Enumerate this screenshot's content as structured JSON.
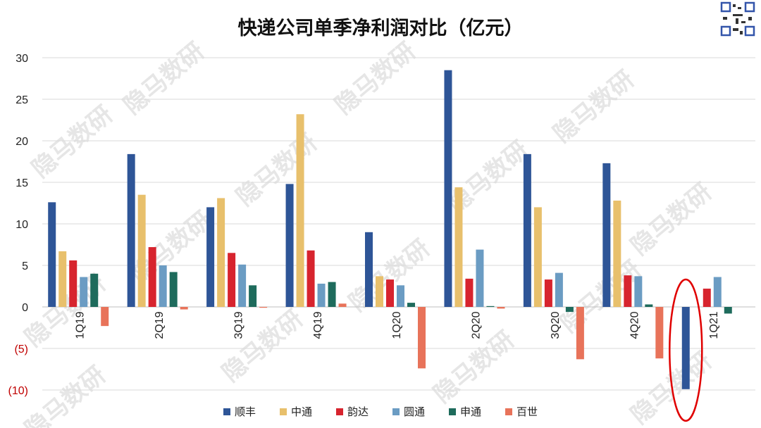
{
  "chart_data": {
    "type": "bar",
    "title": "快递公司单季净利润对比（亿元）",
    "categories": [
      "1Q19",
      "2Q19",
      "3Q19",
      "4Q19",
      "1Q20",
      "2Q20",
      "3Q20",
      "4Q20",
      "1Q21"
    ],
    "series": [
      {
        "name": "顺丰",
        "color": "#2E5597",
        "values": [
          12.6,
          18.4,
          12.0,
          14.8,
          9.0,
          28.5,
          18.4,
          17.3,
          -9.9
        ]
      },
      {
        "name": "中通",
        "color": "#E8C06C",
        "values": [
          6.7,
          13.5,
          13.1,
          23.2,
          3.7,
          14.4,
          12.0,
          12.8,
          null
        ]
      },
      {
        "name": "韵达",
        "color": "#D7242E",
        "values": [
          5.6,
          7.2,
          6.5,
          6.8,
          3.3,
          3.4,
          3.3,
          3.8,
          2.2
        ]
      },
      {
        "name": "圆通",
        "color": "#6B9CC3",
        "values": [
          3.6,
          5.0,
          5.1,
          2.8,
          2.6,
          6.9,
          4.1,
          3.7,
          3.6
        ]
      },
      {
        "name": "申通",
        "color": "#1E6B5C",
        "values": [
          4.0,
          4.2,
          2.6,
          3.0,
          0.5,
          0.1,
          -0.6,
          0.3,
          -0.8
        ]
      },
      {
        "name": "百世",
        "color": "#E8735A",
        "values": [
          -2.3,
          -0.3,
          -0.1,
          0.4,
          -7.4,
          -0.2,
          -6.3,
          -6.2,
          null
        ]
      }
    ],
    "ylim": [
      -10,
      30
    ],
    "yticks": [
      {
        "value": 30,
        "label": "30"
      },
      {
        "value": 25,
        "label": "25"
      },
      {
        "value": 20,
        "label": "20"
      },
      {
        "value": 15,
        "label": "15"
      },
      {
        "value": 10,
        "label": "10"
      },
      {
        "value": 5,
        "label": "5"
      },
      {
        "value": 0,
        "label": "0"
      },
      {
        "value": -5,
        "label": "(5)"
      },
      {
        "value": -10,
        "label": "(10)"
      }
    ],
    "negative_label_color": "#C00000",
    "gridlines": true,
    "legend_position": "bottom",
    "highlight": {
      "category": "1Q21",
      "series": "顺丰",
      "color": "#E00000"
    },
    "watermark": "隐马数研"
  }
}
